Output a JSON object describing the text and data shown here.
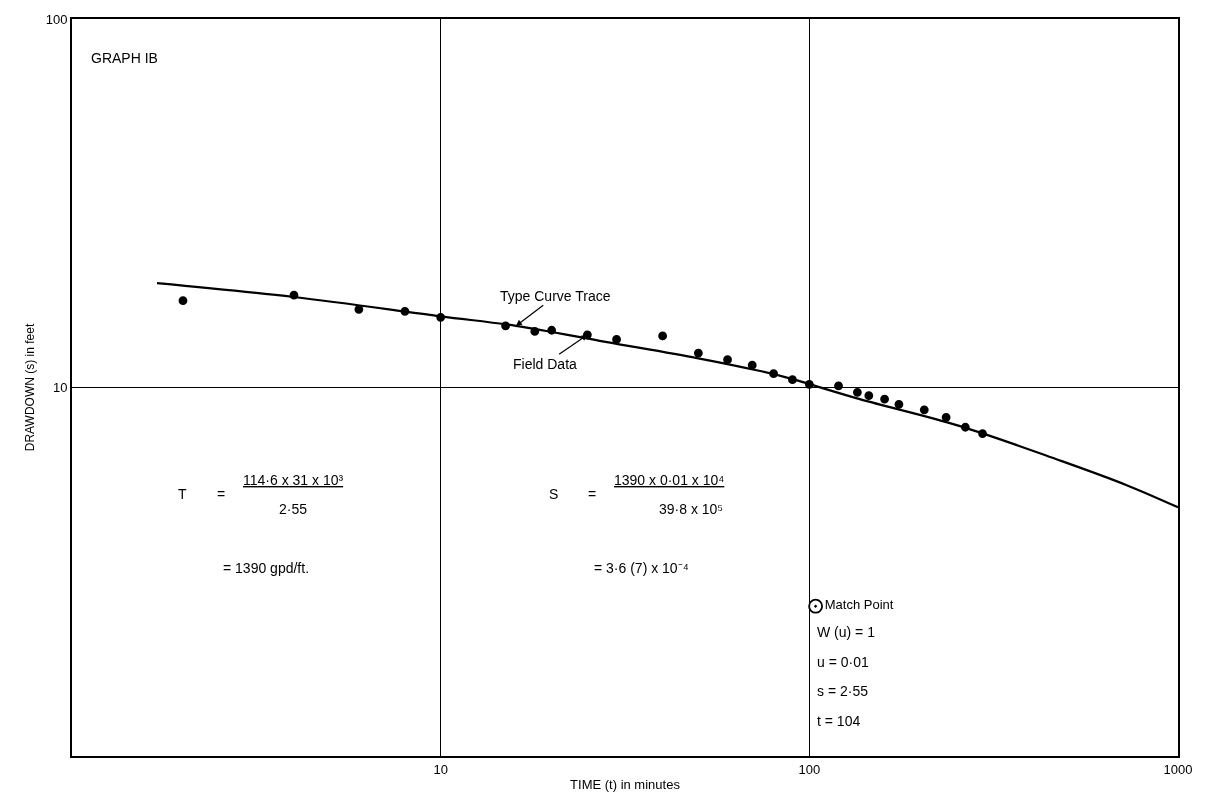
{
  "chart_data": {
    "type": "scatter",
    "title": "GRAPH IB",
    "xlabel": "TIME (t) in minutes",
    "ylabel": "DRAWDOWN (s) in feet",
    "log": "xy",
    "xlim": [
      1,
      1000
    ],
    "ylim": [
      1,
      100
    ],
    "xticks": [
      10,
      100,
      1000
    ],
    "yticks": [
      10,
      100
    ],
    "grid": true,
    "marker": "circle",
    "series": [
      {
        "type": "line",
        "marker": "none",
        "color": "#000000",
        "x": [
          1.7,
          4,
          10,
          16,
          28,
          50,
          73,
          88,
          137,
          255,
          476,
          723,
          1000
        ],
        "values": [
          19.2,
          17.6,
          15.6,
          14.7,
          13.3,
          12.0,
          11.1,
          10.6,
          9.3,
          7.87,
          6.35,
          5.44,
          4.73
        ]
      },
      {
        "color": "#000000",
        "x": [
          2,
          4,
          6,
          8,
          10,
          15,
          18,
          20,
          25,
          30,
          40,
          50,
          60,
          70,
          80,
          90,
          100,
          120,
          135,
          145,
          160,
          175,
          205,
          235,
          265,
          295
        ],
        "values": [
          17.2,
          17.8,
          16.3,
          16.1,
          15.5,
          14.7,
          14.2,
          14.3,
          13.9,
          13.5,
          13.8,
          12.4,
          11.9,
          11.5,
          10.9,
          10.5,
          10.2,
          10.1,
          9.7,
          9.5,
          9.3,
          9.0,
          8.7,
          8.3,
          7.8,
          7.5
        ]
      },
      {
        "type": "scatter",
        "name": "Match Point",
        "marker": "circle-dot",
        "color": "#000000",
        "x": [
          104
        ],
        "values": [
          2.55
        ]
      }
    ],
    "annotations": [
      {
        "text": "Type Curve Trace",
        "x": 16,
        "y": 14.7
      },
      {
        "text": "Field Data",
        "x": 25,
        "y": 13.9
      },
      "T",
      "=",
      "114·6 x 31 x 10³",
      "2·55",
      "= 1390 gpd/ft.",
      "S",
      "=",
      "1390 x 0·01 x 10⁴",
      "39·8 x 10⁵",
      "= 3·6 (7) x 10⁻⁴",
      "W (u) = 1",
      "u = 0·01",
      "s = 2·55",
      "t = 104"
    ]
  }
}
